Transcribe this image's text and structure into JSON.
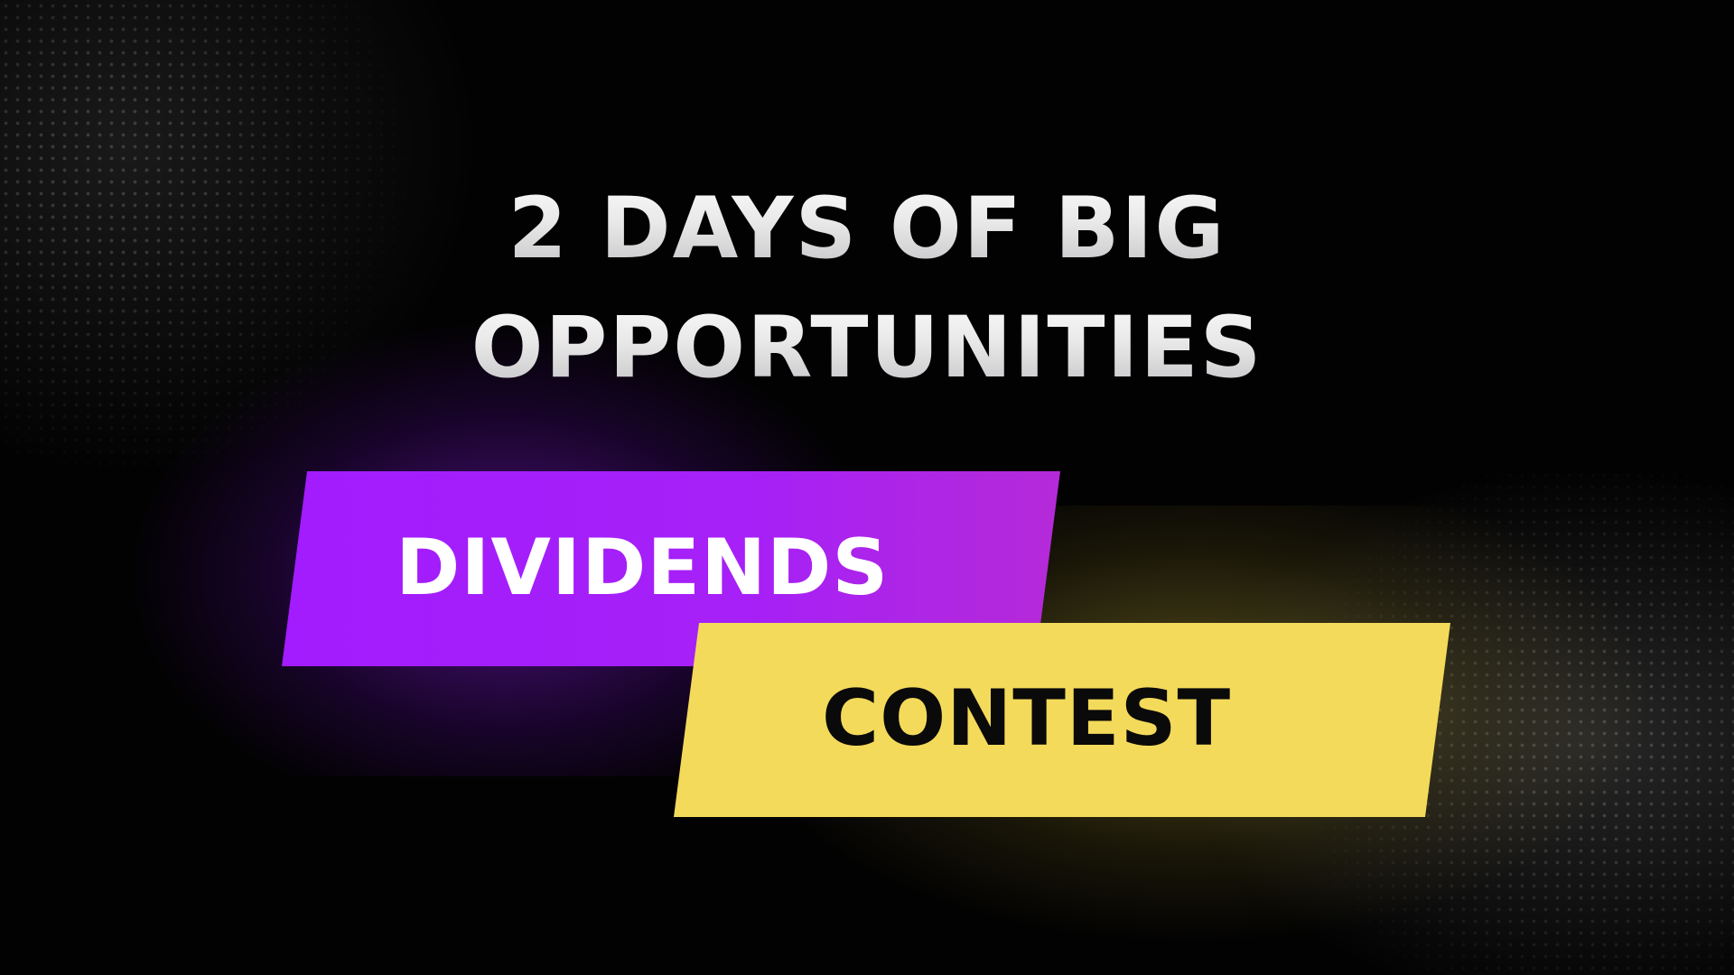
{
  "headline": {
    "line1": "2 DAYS OF BIG",
    "line2": "OPPORTUNITIES"
  },
  "banners": {
    "primary": {
      "label": "DIVIDENDS",
      "color": "#a21cff"
    },
    "secondary": {
      "label": "CONTEST",
      "color": "#f4da5a"
    }
  },
  "theme": {
    "background": "#020202",
    "headline_color": "#e6e6e6"
  }
}
